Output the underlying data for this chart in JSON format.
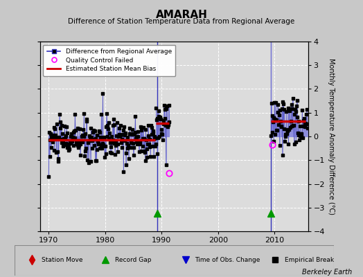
{
  "title": "AMARAH",
  "subtitle": "Difference of Station Temperature Data from Regional Average",
  "ylabel": "Monthly Temperature Anomaly Difference (°C)",
  "xlabel_bottom": "Berkeley Earth",
  "xlim": [
    1968.5,
    2016
  ],
  "ylim": [
    -4,
    4
  ],
  "yticks": [
    -4,
    -3,
    -2,
    -1,
    0,
    1,
    2,
    3,
    4
  ],
  "xticks": [
    1970,
    1980,
    1990,
    2000,
    2010
  ],
  "bg_color": "#c8c8c8",
  "plot_bg_color": "#dcdcdc",
  "grid_color": "#ffffff",
  "segment1_bias": -0.15,
  "segment1_start": 1970.0,
  "segment1_end": 1988.9,
  "segment2_bias": 0.55,
  "segment2_start": 1989.0,
  "segment2_end": 1991.3,
  "segment3_bias": 0.65,
  "segment3_start": 2009.3,
  "segment3_end": 2015.5,
  "gap1_x": 1989.3,
  "gap2_x": 2009.3,
  "blue_color": "#3333bb",
  "red_color": "#cc0000",
  "line_color": "#8888dd"
}
